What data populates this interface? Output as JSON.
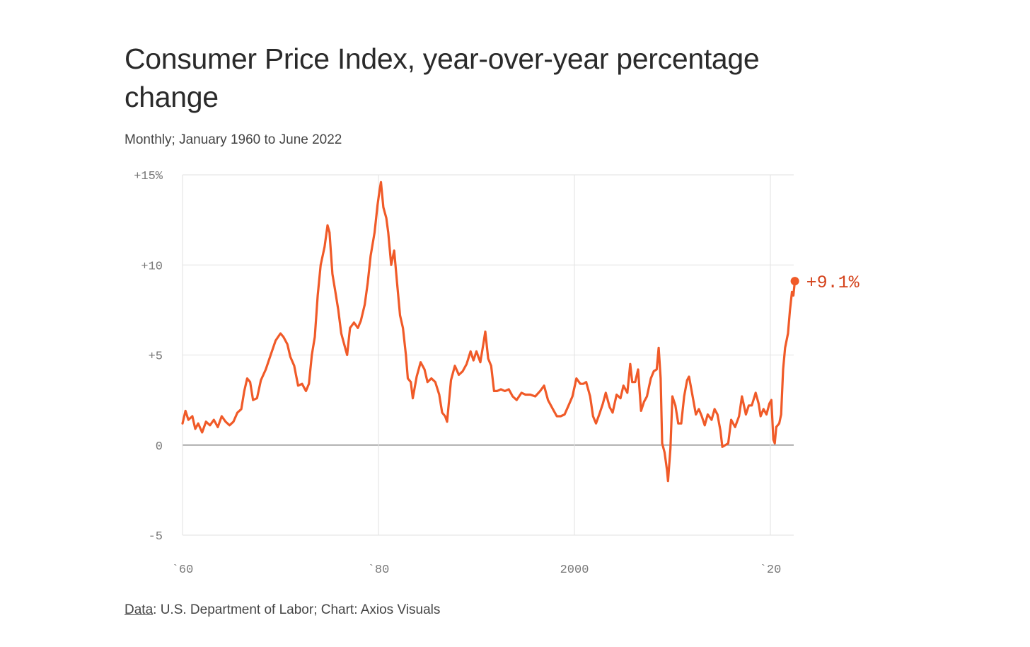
{
  "title": "Consumer Price Index, year-over-year percentage change",
  "subtitle": "Monthly; January 1960 to June 2022",
  "footer": {
    "source_link": "Data",
    "source_text": ": U.S. Department of Labor; Chart: Axios Visuals"
  },
  "colors": {
    "line": "#f05a28",
    "label": "#d4431c",
    "grid": "#e2e2e2",
    "zero": "#888888"
  },
  "chart_data": {
    "type": "line",
    "title": "Consumer Price Index, year-over-year percentage change",
    "subtitle": "Monthly; January 1960 to June 2022",
    "xlabel": "",
    "ylabel": "",
    "xlim": [
      1960,
      2022.5
    ],
    "ylim": [
      -5,
      15
    ],
    "x_ticks": [
      {
        "value": 1960,
        "label": "`60"
      },
      {
        "value": 1980,
        "label": "`80"
      },
      {
        "value": 2000,
        "label": "2000"
      },
      {
        "value": 2020,
        "label": "`20"
      }
    ],
    "y_ticks": [
      {
        "value": 15,
        "label": "+15%"
      },
      {
        "value": 10,
        "label": "+10"
      },
      {
        "value": 5,
        "label": "+5"
      },
      {
        "value": 0,
        "label": "0"
      },
      {
        "value": -5,
        "label": "-5"
      }
    ],
    "grid": true,
    "end_label": "+9.1%",
    "series": [
      {
        "points": [
          [
            1960.0,
            1.2
          ],
          [
            1960.3,
            1.9
          ],
          [
            1960.6,
            1.4
          ],
          [
            1961.0,
            1.6
          ],
          [
            1961.3,
            0.9
          ],
          [
            1961.6,
            1.2
          ],
          [
            1962.0,
            0.7
          ],
          [
            1962.4,
            1.3
          ],
          [
            1962.8,
            1.1
          ],
          [
            1963.2,
            1.4
          ],
          [
            1963.6,
            1.0
          ],
          [
            1964.0,
            1.6
          ],
          [
            1964.4,
            1.3
          ],
          [
            1964.8,
            1.1
          ],
          [
            1965.2,
            1.3
          ],
          [
            1965.6,
            1.8
          ],
          [
            1966.0,
            2.0
          ],
          [
            1966.3,
            3.0
          ],
          [
            1966.6,
            3.7
          ],
          [
            1966.9,
            3.5
          ],
          [
            1967.2,
            2.5
          ],
          [
            1967.6,
            2.6
          ],
          [
            1968.0,
            3.6
          ],
          [
            1968.5,
            4.2
          ],
          [
            1969.0,
            5.0
          ],
          [
            1969.5,
            5.8
          ],
          [
            1970.0,
            6.2
          ],
          [
            1970.3,
            6.0
          ],
          [
            1970.7,
            5.6
          ],
          [
            1971.0,
            4.9
          ],
          [
            1971.4,
            4.4
          ],
          [
            1971.8,
            3.3
          ],
          [
            1972.2,
            3.4
          ],
          [
            1972.6,
            3.0
          ],
          [
            1972.9,
            3.4
          ],
          [
            1973.2,
            5.0
          ],
          [
            1973.5,
            6.0
          ],
          [
            1973.8,
            8.3
          ],
          [
            1974.1,
            10.0
          ],
          [
            1974.5,
            11.0
          ],
          [
            1974.8,
            12.2
          ],
          [
            1975.0,
            11.8
          ],
          [
            1975.3,
            9.5
          ],
          [
            1975.6,
            8.5
          ],
          [
            1975.9,
            7.5
          ],
          [
            1976.2,
            6.2
          ],
          [
            1976.5,
            5.6
          ],
          [
            1976.8,
            5.0
          ],
          [
            1977.1,
            6.5
          ],
          [
            1977.5,
            6.8
          ],
          [
            1977.9,
            6.5
          ],
          [
            1978.2,
            6.9
          ],
          [
            1978.6,
            7.8
          ],
          [
            1978.9,
            9.0
          ],
          [
            1979.2,
            10.5
          ],
          [
            1979.6,
            11.8
          ],
          [
            1979.9,
            13.3
          ],
          [
            1980.1,
            14.1
          ],
          [
            1980.25,
            14.6
          ],
          [
            1980.5,
            13.2
          ],
          [
            1980.8,
            12.6
          ],
          [
            1981.0,
            11.8
          ],
          [
            1981.3,
            10.0
          ],
          [
            1981.6,
            10.8
          ],
          [
            1981.9,
            9.0
          ],
          [
            1982.2,
            7.2
          ],
          [
            1982.5,
            6.5
          ],
          [
            1982.8,
            5.0
          ],
          [
            1983.0,
            3.7
          ],
          [
            1983.3,
            3.5
          ],
          [
            1983.5,
            2.6
          ],
          [
            1983.9,
            3.8
          ],
          [
            1984.3,
            4.6
          ],
          [
            1984.7,
            4.2
          ],
          [
            1985.0,
            3.5
          ],
          [
            1985.4,
            3.7
          ],
          [
            1985.8,
            3.5
          ],
          [
            1986.2,
            2.8
          ],
          [
            1986.5,
            1.8
          ],
          [
            1986.8,
            1.6
          ],
          [
            1987.0,
            1.3
          ],
          [
            1987.4,
            3.6
          ],
          [
            1987.8,
            4.4
          ],
          [
            1988.2,
            3.9
          ],
          [
            1988.6,
            4.1
          ],
          [
            1989.0,
            4.5
          ],
          [
            1989.4,
            5.2
          ],
          [
            1989.7,
            4.7
          ],
          [
            1990.0,
            5.2
          ],
          [
            1990.4,
            4.6
          ],
          [
            1990.7,
            5.6
          ],
          [
            1990.9,
            6.3
          ],
          [
            1991.2,
            4.8
          ],
          [
            1991.5,
            4.4
          ],
          [
            1991.8,
            3.0
          ],
          [
            1992.1,
            3.0
          ],
          [
            1992.5,
            3.1
          ],
          [
            1992.9,
            3.0
          ],
          [
            1993.3,
            3.1
          ],
          [
            1993.7,
            2.7
          ],
          [
            1994.1,
            2.5
          ],
          [
            1994.6,
            2.9
          ],
          [
            1995.0,
            2.8
          ],
          [
            1995.5,
            2.8
          ],
          [
            1996.0,
            2.7
          ],
          [
            1996.5,
            3.0
          ],
          [
            1996.9,
            3.3
          ],
          [
            1997.3,
            2.5
          ],
          [
            1997.8,
            2.0
          ],
          [
            1998.2,
            1.6
          ],
          [
            1998.6,
            1.6
          ],
          [
            1999.0,
            1.7
          ],
          [
            1999.4,
            2.2
          ],
          [
            1999.8,
            2.7
          ],
          [
            2000.2,
            3.7
          ],
          [
            2000.6,
            3.4
          ],
          [
            2000.9,
            3.4
          ],
          [
            2001.2,
            3.5
          ],
          [
            2001.6,
            2.7
          ],
          [
            2001.9,
            1.6
          ],
          [
            2002.2,
            1.2
          ],
          [
            2002.6,
            1.8
          ],
          [
            2002.9,
            2.3
          ],
          [
            2003.2,
            2.9
          ],
          [
            2003.6,
            2.1
          ],
          [
            2003.9,
            1.8
          ],
          [
            2004.3,
            2.8
          ],
          [
            2004.7,
            2.6
          ],
          [
            2005.0,
            3.3
          ],
          [
            2005.4,
            2.9
          ],
          [
            2005.7,
            4.5
          ],
          [
            2005.9,
            3.5
          ],
          [
            2006.2,
            3.5
          ],
          [
            2006.5,
            4.2
          ],
          [
            2006.8,
            1.9
          ],
          [
            2007.1,
            2.4
          ],
          [
            2007.4,
            2.7
          ],
          [
            2007.8,
            3.7
          ],
          [
            2008.1,
            4.1
          ],
          [
            2008.4,
            4.2
          ],
          [
            2008.6,
            5.4
          ],
          [
            2008.8,
            3.7
          ],
          [
            2008.95,
            0.1
          ],
          [
            2009.2,
            -0.4
          ],
          [
            2009.45,
            -1.4
          ],
          [
            2009.55,
            -2.0
          ],
          [
            2009.8,
            -0.2
          ],
          [
            2010.0,
            2.7
          ],
          [
            2010.3,
            2.2
          ],
          [
            2010.6,
            1.2
          ],
          [
            2010.9,
            1.2
          ],
          [
            2011.2,
            2.7
          ],
          [
            2011.5,
            3.6
          ],
          [
            2011.7,
            3.8
          ],
          [
            2012.0,
            2.9
          ],
          [
            2012.4,
            1.7
          ],
          [
            2012.7,
            2.0
          ],
          [
            2013.0,
            1.6
          ],
          [
            2013.3,
            1.1
          ],
          [
            2013.6,
            1.7
          ],
          [
            2014.0,
            1.4
          ],
          [
            2014.3,
            2.0
          ],
          [
            2014.6,
            1.7
          ],
          [
            2014.9,
            0.8
          ],
          [
            2015.1,
            -0.1
          ],
          [
            2015.4,
            0.0
          ],
          [
            2015.7,
            0.1
          ],
          [
            2016.0,
            1.4
          ],
          [
            2016.4,
            1.0
          ],
          [
            2016.8,
            1.6
          ],
          [
            2017.1,
            2.7
          ],
          [
            2017.5,
            1.7
          ],
          [
            2017.8,
            2.2
          ],
          [
            2018.1,
            2.2
          ],
          [
            2018.5,
            2.9
          ],
          [
            2018.8,
            2.3
          ],
          [
            2019.0,
            1.6
          ],
          [
            2019.3,
            2.0
          ],
          [
            2019.6,
            1.7
          ],
          [
            2019.9,
            2.3
          ],
          [
            2020.1,
            2.5
          ],
          [
            2020.3,
            0.3
          ],
          [
            2020.45,
            0.1
          ],
          [
            2020.6,
            1.0
          ],
          [
            2020.9,
            1.2
          ],
          [
            2021.1,
            1.7
          ],
          [
            2021.3,
            4.2
          ],
          [
            2021.5,
            5.4
          ],
          [
            2021.8,
            6.2
          ],
          [
            2022.0,
            7.5
          ],
          [
            2022.2,
            8.5
          ],
          [
            2022.35,
            8.3
          ],
          [
            2022.5,
            9.1
          ]
        ]
      }
    ]
  }
}
